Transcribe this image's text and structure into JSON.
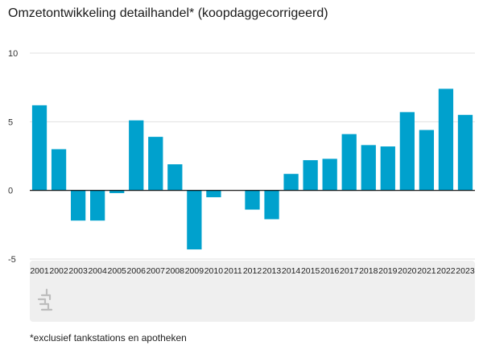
{
  "title": "Omzetontwikkeling detailhandel* (koopdaggecorrigeerd)",
  "footnote": "*exclusief tankstations en apotheken",
  "logo": {
    "icon": "cbs-logo-icon"
  },
  "colors": {
    "bar": "#00a1cd",
    "grid": "#e0e0e0",
    "zero": "#000000",
    "legend_band": "#efefef",
    "logo": "#bdbdbd"
  },
  "chart_data": {
    "type": "bar",
    "title": "Omzetontwikkeling detailhandel* (koopdaggecorrigeerd)",
    "xlabel": "",
    "ylabel": "",
    "categories": [
      "2001",
      "2002",
      "2003",
      "2004",
      "2005",
      "2006",
      "2007",
      "2008",
      "2009",
      "2010",
      "2011",
      "2012",
      "2013",
      "2014",
      "2015",
      "2016",
      "2017",
      "2018",
      "2019",
      "2020",
      "2021",
      "2022",
      "2023"
    ],
    "values": [
      6.2,
      3.0,
      -2.2,
      -2.2,
      -0.2,
      5.1,
      3.9,
      1.9,
      -4.3,
      -0.5,
      0.0,
      -1.4,
      -2.1,
      1.2,
      2.2,
      2.3,
      4.1,
      3.3,
      3.2,
      5.7,
      4.4,
      7.4,
      5.5
    ],
    "ylim": [
      -5,
      10
    ],
    "yticks": [
      10,
      5,
      0,
      -5
    ],
    "grid": true
  }
}
